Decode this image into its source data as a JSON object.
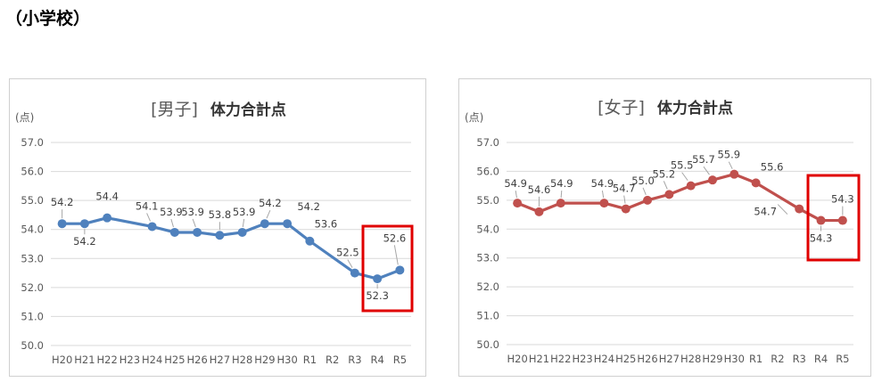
{
  "page": {
    "heading": "（小学校）"
  },
  "chart_data": [
    {
      "type": "line",
      "title_prefix": "[男子]",
      "title": "体力合計点",
      "unit_label": "(点)",
      "categories": [
        "H20",
        "H21",
        "H22",
        "H23",
        "H24",
        "H25",
        "H26",
        "H27",
        "H28",
        "H29",
        "H30",
        "R1",
        "R2",
        "R3",
        "R4",
        "R5"
      ],
      "ylim": [
        50.0,
        57.0
      ],
      "yticks": [
        "57.0",
        "56.0",
        "55.0",
        "54.0",
        "53.0",
        "52.0",
        "51.0",
        "50.0"
      ],
      "grid": true,
      "series": [
        {
          "color": "#4f81bd",
          "values": [
            54.2,
            54.2,
            54.4,
            null,
            54.1,
            53.9,
            53.9,
            53.8,
            53.9,
            54.2,
            54.2,
            53.6,
            null,
            52.5,
            52.3,
            52.6
          ],
          "labels": [
            "54.2",
            "54.2",
            "54.4",
            "",
            "54.1",
            "53.9",
            "53.9",
            "53.8",
            "53.9",
            "54.2",
            "54.2",
            "53.6",
            "",
            "52.5",
            "52.3",
            "52.6"
          ]
        }
      ],
      "highlight": {
        "color": "#e00000",
        "from": "R4",
        "to": "R5"
      }
    },
    {
      "type": "line",
      "title_prefix": "[女子]",
      "title": "体力合計点",
      "unit_label": "(点)",
      "categories": [
        "H20",
        "H21",
        "H22",
        "H23",
        "H24",
        "H25",
        "H26",
        "H27",
        "H28",
        "H29",
        "H30",
        "R1",
        "R2",
        "R3",
        "R4",
        "R5"
      ],
      "ylim": [
        50.0,
        57.0
      ],
      "yticks": [
        "57.0",
        "56.0",
        "55.0",
        "54.0",
        "53.0",
        "52.0",
        "51.0",
        "50.0"
      ],
      "grid": true,
      "series": [
        {
          "color": "#c0504d",
          "values": [
            54.9,
            54.6,
            54.9,
            null,
            54.9,
            54.7,
            55.0,
            55.2,
            55.5,
            55.7,
            55.9,
            55.6,
            null,
            54.7,
            54.3,
            54.3
          ],
          "labels": [
            "54.9",
            "54.6",
            "54.9",
            "",
            "54.9",
            "54.7",
            "55.0",
            "55.2",
            "55.5",
            "55.7",
            "55.9",
            "55.6",
            "",
            "54.7",
            "54.3",
            "54.3"
          ]
        }
      ],
      "highlight": {
        "color": "#e00000",
        "from": "R4",
        "to": "R5"
      }
    }
  ]
}
